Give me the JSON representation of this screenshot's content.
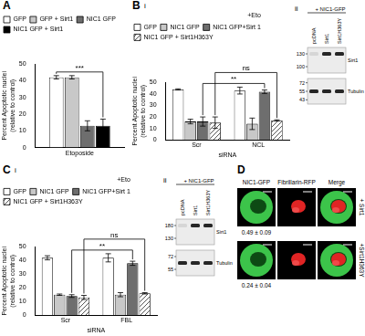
{
  "chart_data": [
    {
      "panel": "A",
      "type": "bar",
      "categories": [
        "Etoposide"
      ],
      "ylabel": [
        "Percent Apoptotic nuclei",
        "(relative to control)"
      ],
      "ylim": [
        0,
        50
      ],
      "yticks": [
        0,
        10,
        20,
        30,
        40,
        50
      ],
      "grid": false,
      "legend": "top-left",
      "series": [
        {
          "name": "GFP",
          "color": "#ffffff",
          "values": [
            42
          ],
          "errors": [
            1
          ]
        },
        {
          "name": "GFP + Sirt1",
          "color": "#c8c8c8",
          "values": [
            42
          ],
          "errors": [
            1
          ]
        },
        {
          "name": "NIC1 GFP",
          "color": "#6e6e6e",
          "values": [
            13
          ],
          "errors": [
            3
          ]
        },
        {
          "name": "NIC1 GFP + Sirt1",
          "color": "#000000",
          "values": [
            13
          ],
          "errors": [
            4
          ]
        }
      ],
      "annotations": [
        {
          "text": "***",
          "from": {
            "category": "Etoposide",
            "series": "GFP"
          },
          "to": {
            "category": "Etoposide",
            "series": "NIC1 GFP + Sirt1"
          }
        }
      ]
    },
    {
      "panel": "B",
      "subpanel": "i",
      "type": "bar",
      "categories": [
        "Scr",
        "NCL"
      ],
      "xlabel": "siRNA",
      "ylabel": [
        "Percent Apoptotic nuclei",
        "(relative to control)"
      ],
      "ylim": [
        0,
        50
      ],
      "yticks": [
        0,
        10,
        20,
        30,
        40,
        50
      ],
      "grid": false,
      "legend": "top-left",
      "legend_title": "+Eto",
      "series": [
        {
          "name": "GFP",
          "color": "#ffffff",
          "values": [
            44,
            43
          ],
          "errors": [
            0.5,
            3
          ]
        },
        {
          "name": "NIC1 GFP",
          "color": "#c8c8c8",
          "values": [
            16,
            14
          ],
          "errors": [
            2,
            5
          ]
        },
        {
          "name": "NIC1 GFP+Sirt 1",
          "color": "#6e6e6e",
          "values": [
            16,
            42
          ],
          "errors": [
            4,
            1.5
          ]
        },
        {
          "name": "NIC1 GFP + Sirt1H363Y",
          "color": "#555555",
          "line_style": "hatched",
          "values": [
            15,
            17
          ],
          "errors": [
            5,
            0.5
          ]
        }
      ],
      "annotations": [
        {
          "text": "**",
          "from": {
            "category": "Scr",
            "series": "NIC1 GFP+Sirt 1"
          },
          "to": {
            "category": "NCL",
            "series": "NIC1 GFP+Sirt 1"
          }
        },
        {
          "text": "ns",
          "from": {
            "category": "Scr",
            "series": "NIC1 GFP + Sirt1H363Y"
          },
          "to": {
            "category": "NCL",
            "series": "NIC1 GFP + Sirt1H363Y"
          }
        }
      ]
    },
    {
      "panel": "C",
      "subpanel": "i",
      "type": "bar",
      "categories": [
        "Scr",
        "FBL"
      ],
      "xlabel": "siRNA",
      "ylabel": [
        "Percent Apoptotic nuclei",
        "(relative to control)"
      ],
      "ylim": [
        0,
        50
      ],
      "yticks": [
        0,
        10,
        20,
        30,
        40,
        50
      ],
      "grid": false,
      "legend": "top-left",
      "legend_title": "+Eto",
      "series": [
        {
          "name": "GFP",
          "color": "#ffffff",
          "values": [
            42,
            42
          ],
          "errors": [
            1.5,
            3
          ]
        },
        {
          "name": "NIC1 GFP",
          "color": "#c8c8c8",
          "values": [
            15,
            15
          ],
          "errors": [
            0.5,
            1.5
          ]
        },
        {
          "name": "NIC1 GFP+Sirt 1",
          "color": "#6e6e6e",
          "values": [
            14,
            38
          ],
          "errors": [
            1,
            1.5
          ]
        },
        {
          "name": "NIC1 GFP + Sirt1H363Y",
          "color": "#555555",
          "line_style": "hatched",
          "values": [
            13,
            16
          ],
          "errors": [
            1.5,
            0.5
          ]
        }
      ],
      "annotations": [
        {
          "text": "**",
          "from": {
            "category": "Scr",
            "series": "NIC1 GFP+Sirt 1"
          },
          "to": {
            "category": "FBL",
            "series": "NIC1 GFP+Sirt 1"
          }
        },
        {
          "text": "ns",
          "from": {
            "category": "Scr",
            "series": "NIC1 GFP + Sirt1H363Y"
          },
          "to": {
            "category": "FBL",
            "series": "NIC1 GFP + Sirt1H363Y"
          }
        }
      ]
    }
  ],
  "blots": [
    {
      "panel": "B",
      "subpanel": "ii",
      "header": "+ NIC1-GFP",
      "lanes": [
        "pcDNA",
        "Sirt1",
        "Sirt1H363Y"
      ],
      "rows": [
        {
          "label": "Sirt1",
          "markers": [
            130,
            100
          ]
        },
        {
          "label": "Tubulin",
          "markers": [
            72,
            55,
            43
          ]
        }
      ]
    },
    {
      "panel": "C",
      "subpanel": "ii",
      "header": "+ NIC1-GFP",
      "lanes": [
        "pcDNA",
        "Sirt1",
        "Sirt1H363Y"
      ],
      "rows": [
        {
          "label": "Sirt1",
          "markers": [
            180,
            130
          ]
        },
        {
          "label": "Tubulin",
          "markers": [
            72,
            55
          ]
        }
      ]
    }
  ],
  "images": {
    "panel": "D",
    "columns": [
      "NIC1-GFP",
      "Fibrillarin-RFP",
      "Merge"
    ],
    "rows": [
      {
        "label": "+ Sirt1",
        "value": "0.49 ± 0.09"
      },
      {
        "label": "+Sirt1H363Y",
        "value": "0.24 ± 0.04"
      }
    ]
  }
}
